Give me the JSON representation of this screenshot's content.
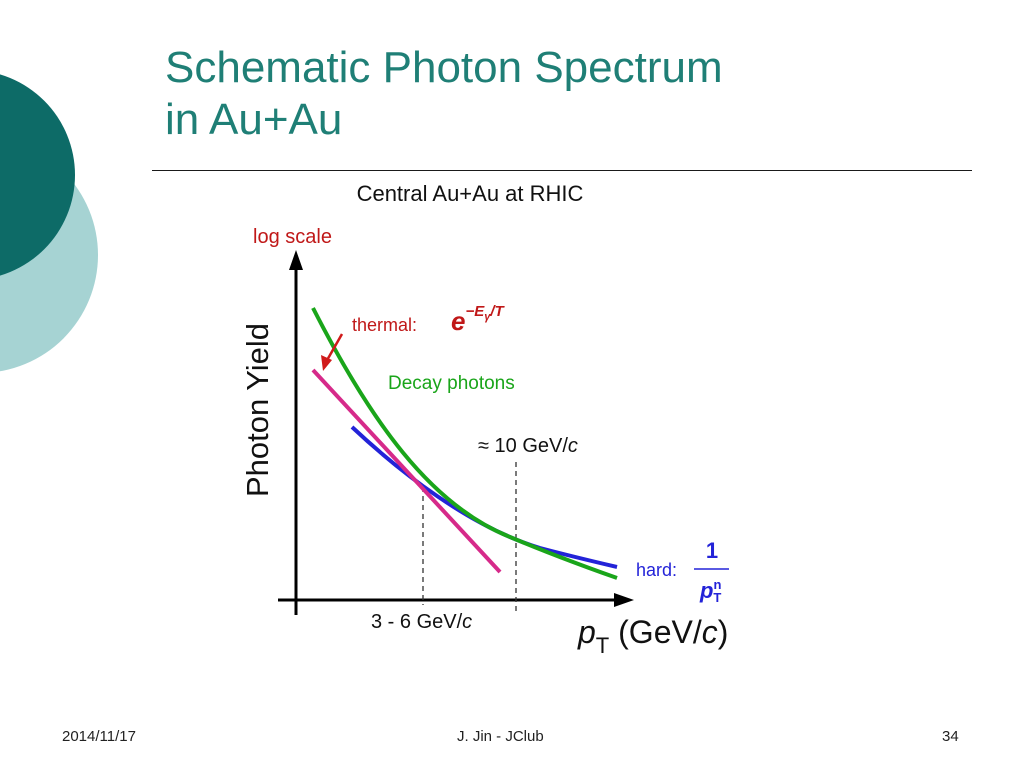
{
  "slide": {
    "title_line1": "Schematic Photon Spectrum",
    "title_line2": "in Au+Au"
  },
  "footer": {
    "date": "2014/11/17",
    "center": "J. Jin - JClub",
    "page": "34"
  },
  "diagram": {
    "heading": "Central Au+Au at RHIC",
    "log_scale_label": "log scale",
    "y_axis_label": "Photon Yield",
    "x_axis_label": {
      "p": "p",
      "sub": "T",
      "unit": " (GeV/",
      "c": "c",
      "close": ")"
    },
    "thermal": {
      "label": "thermal:",
      "formula_base": "e",
      "formula_exp": "−E",
      "formula_sub": "γ",
      "formula_tail": "/T",
      "color": "#d62a8a"
    },
    "decay": {
      "label": "Decay photons",
      "color": "#1aa51a"
    },
    "hard": {
      "label": "hard:",
      "numerator": "1",
      "denominator_base": "p",
      "denominator_sup": "n",
      "denominator_sub": "T",
      "color": "#2323d8"
    },
    "crossings": {
      "low": {
        "label": "3 - 6 GeV/",
        "c": "c"
      },
      "high": {
        "label": "≈ 10 GeV/",
        "c": "c"
      }
    },
    "colors": {
      "teal_dark": "#0d6b67",
      "teal_light": "#9fcfcf",
      "title": "#1f7f76",
      "log_scale": "#c01818",
      "arrow": "#d01a1a"
    }
  }
}
